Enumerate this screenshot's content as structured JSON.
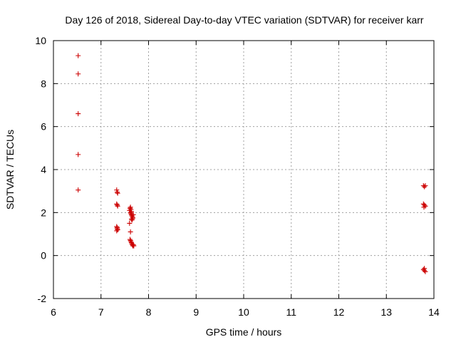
{
  "chart_data": {
    "type": "scatter",
    "title": "Day 126 of 2018, Sidereal Day-to-day VTEC variation (SDTVAR) for receiver karr",
    "xlabel": "GPS time / hours",
    "ylabel": "SDTVAR / TECUs",
    "xlim": [
      6,
      14
    ],
    "ylim": [
      -2,
      10
    ],
    "xticks": [
      6,
      7,
      8,
      9,
      10,
      11,
      12,
      13,
      14
    ],
    "yticks": [
      -2,
      0,
      2,
      4,
      6,
      8,
      10
    ],
    "xtick_labels": [
      "6",
      "7",
      "8",
      "9",
      "10",
      "11",
      "12",
      "13",
      "14"
    ],
    "ytick_labels": [
      "-2",
      "0",
      "2",
      "4",
      "6",
      "8",
      "10"
    ],
    "grid": true,
    "marker": "plus",
    "series": [
      {
        "name": "SDTVAR",
        "color": "#cc0000",
        "x": [
          6.52,
          6.52,
          6.52,
          6.52,
          6.52,
          7.33,
          7.34,
          7.35,
          7.33,
          7.34,
          7.35,
          7.33,
          7.34,
          7.35,
          7.33,
          7.34,
          7.35,
          7.6,
          7.61,
          7.62,
          7.63,
          7.64,
          7.62,
          7.63,
          7.64,
          7.65,
          7.66,
          7.67,
          7.64,
          7.65,
          7.66,
          7.67,
          7.68,
          7.6,
          7.62,
          7.61,
          7.62,
          7.63,
          7.64,
          7.65,
          7.66,
          7.67,
          7.68,
          7.69,
          13.78,
          13.8,
          13.82,
          13.78,
          13.8,
          13.82,
          13.79,
          13.78,
          13.8,
          13.82,
          13.8
        ],
        "y": [
          9.3,
          8.45,
          6.6,
          4.7,
          3.05,
          3.05,
          2.95,
          2.9,
          2.4,
          2.35,
          2.3,
          1.35,
          1.25,
          1.2,
          1.15,
          1.3,
          1.2,
          2.1,
          2.2,
          2.25,
          2.15,
          2.05,
          2.0,
          1.95,
          1.9,
          1.85,
          1.8,
          1.75,
          1.7,
          1.65,
          1.7,
          1.75,
          1.9,
          1.5,
          1.1,
          0.75,
          0.7,
          0.65,
          0.6,
          0.55,
          0.5,
          0.45,
          0.5,
          0.45,
          3.25,
          3.2,
          3.25,
          2.4,
          2.35,
          2.3,
          2.25,
          -0.65,
          -0.7,
          -0.75,
          -0.6
        ]
      }
    ]
  }
}
